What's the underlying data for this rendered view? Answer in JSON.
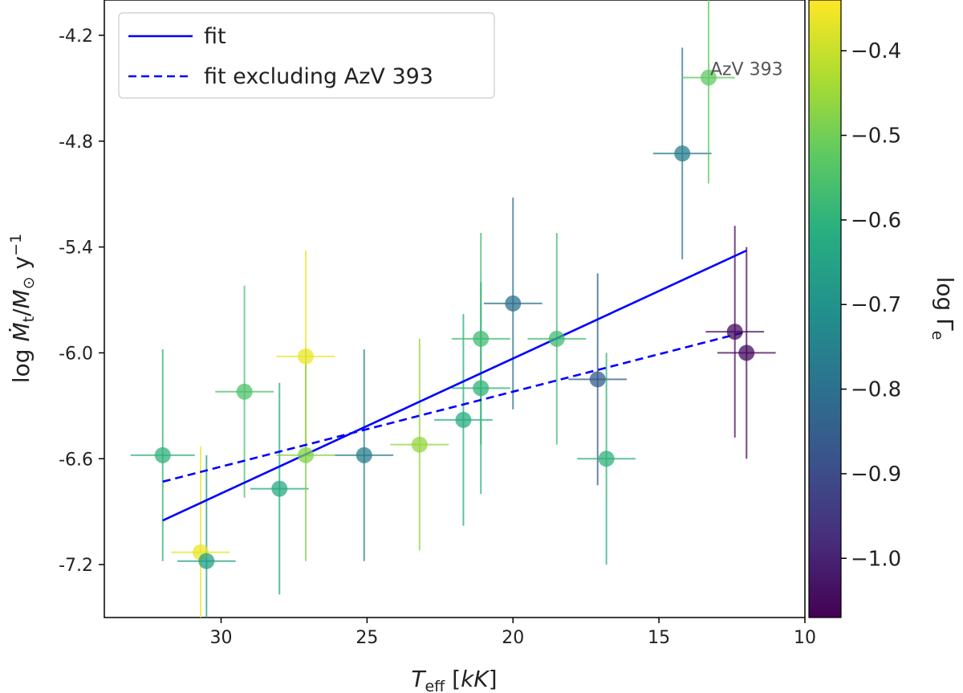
{
  "chart_data": {
    "type": "scatter",
    "title": "",
    "xlabel": "T_eff [kK]",
    "ylabel": "log Ṁ_t / M_⊙ y^-1",
    "xlim": [
      34,
      10
    ],
    "ylim": [
      -7.5,
      -4.0
    ],
    "x_ticks": [
      30,
      25,
      20,
      15,
      10
    ],
    "x_tick_labels": [
      "30",
      "25",
      "20",
      "15",
      "10"
    ],
    "y_ticks": [
      -4.2,
      -4.8,
      -5.4,
      -6.0,
      -6.6,
      -7.2
    ],
    "y_tick_labels": [
      "-4.2",
      "-4.8",
      "-5.4",
      "-6.0",
      "-6.6",
      "-7.2"
    ],
    "colorbar": {
      "label": "log Γ_e",
      "range": [
        -1.07,
        -0.34
      ],
      "colormap": "viridis",
      "ticks": [
        -0.4,
        -0.5,
        -0.6,
        -0.7,
        -0.8,
        -0.9,
        -1.0
      ],
      "tick_labels": [
        "−0.4",
        "−0.5",
        "−0.6",
        "−0.7",
        "−0.8",
        "−0.9",
        "−1.0"
      ]
    },
    "points": [
      {
        "teff": 32.0,
        "mdot": -6.58,
        "xerr": 1.1,
        "yerr_lo": 0.6,
        "yerr_hi": 0.6,
        "gamma": -0.6
      },
      {
        "teff": 30.7,
        "mdot": -7.13,
        "xerr": 1.0,
        "yerr_lo": 0.6,
        "yerr_hi": 0.6,
        "gamma": -0.36
      },
      {
        "teff": 30.5,
        "mdot": -7.18,
        "xerr": 1.0,
        "yerr_lo": 0.6,
        "yerr_hi": 0.6,
        "gamma": -0.66
      },
      {
        "teff": 29.2,
        "mdot": -6.22,
        "xerr": 1.0,
        "yerr_lo": 0.6,
        "yerr_hi": 0.6,
        "gamma": -0.55
      },
      {
        "teff": 28.0,
        "mdot": -6.77,
        "xerr": 1.0,
        "yerr_lo": 0.6,
        "yerr_hi": 0.6,
        "gamma": -0.63
      },
      {
        "teff": 27.1,
        "mdot": -6.02,
        "xerr": 1.0,
        "yerr_lo": 0.6,
        "yerr_hi": 0.6,
        "gamma": -0.36
      },
      {
        "teff": 27.1,
        "mdot": -6.58,
        "xerr": 1.0,
        "yerr_lo": 0.6,
        "yerr_hi": 0.6,
        "gamma": -0.48
      },
      {
        "teff": 25.1,
        "mdot": -6.58,
        "xerr": 1.0,
        "yerr_lo": 0.6,
        "yerr_hi": 0.6,
        "gamma": -0.76
      },
      {
        "teff": 23.2,
        "mdot": -6.52,
        "xerr": 1.0,
        "yerr_lo": 0.6,
        "yerr_hi": 0.6,
        "gamma": -0.46
      },
      {
        "teff": 21.7,
        "mdot": -6.38,
        "xerr": 1.0,
        "yerr_lo": 0.6,
        "yerr_hi": 0.6,
        "gamma": -0.62
      },
      {
        "teff": 21.1,
        "mdot": -5.92,
        "xerr": 1.0,
        "yerr_lo": 0.6,
        "yerr_hi": 0.6,
        "gamma": -0.57
      },
      {
        "teff": 21.1,
        "mdot": -6.2,
        "xerr": 1.0,
        "yerr_lo": 0.6,
        "yerr_hi": 0.6,
        "gamma": -0.6
      },
      {
        "teff": 20.0,
        "mdot": -5.72,
        "xerr": 1.0,
        "yerr_lo": 0.6,
        "yerr_hi": 0.6,
        "gamma": -0.8
      },
      {
        "teff": 18.5,
        "mdot": -5.92,
        "xerr": 1.0,
        "yerr_lo": 0.6,
        "yerr_hi": 0.6,
        "gamma": -0.57
      },
      {
        "teff": 17.1,
        "mdot": -6.15,
        "xerr": 1.0,
        "yerr_lo": 0.6,
        "yerr_hi": 0.6,
        "gamma": -0.86
      },
      {
        "teff": 16.8,
        "mdot": -6.6,
        "xerr": 1.0,
        "yerr_lo": 0.6,
        "yerr_hi": 0.6,
        "gamma": -0.6
      },
      {
        "teff": 14.2,
        "mdot": -4.87,
        "xerr": 1.0,
        "yerr_lo": 0.6,
        "yerr_hi": 0.6,
        "gamma": -0.76
      },
      {
        "teff": 13.3,
        "mdot": -4.44,
        "xerr": 0.9,
        "yerr_lo": 0.6,
        "yerr_hi": 0.6,
        "gamma": -0.52
      },
      {
        "teff": 12.4,
        "mdot": -5.88,
        "xerr": 1.0,
        "yerr_lo": 0.6,
        "yerr_hi": 0.6,
        "gamma": -1.05
      },
      {
        "teff": 12.0,
        "mdot": -6.0,
        "xerr": 1.0,
        "yerr_lo": 0.6,
        "yerr_hi": 0.6,
        "gamma": -1.05
      }
    ],
    "series": [
      {
        "name": "fit",
        "style": "solid",
        "color": "#0000ff",
        "x": [
          32.0,
          12.0
        ],
        "y": [
          -6.95,
          -5.42
        ]
      },
      {
        "name": "fit excluding AzV 393",
        "style": "dashed",
        "color": "#0000ff",
        "x": [
          32.0,
          12.0
        ],
        "y": [
          -6.73,
          -5.88
        ]
      }
    ],
    "annotations": [
      {
        "text": "AzV 393",
        "teff": 13.3,
        "mdot": -4.44
      }
    ],
    "legend": {
      "placement": "top-left",
      "entries": [
        "fit",
        "fit excluding AzV 393"
      ]
    }
  }
}
